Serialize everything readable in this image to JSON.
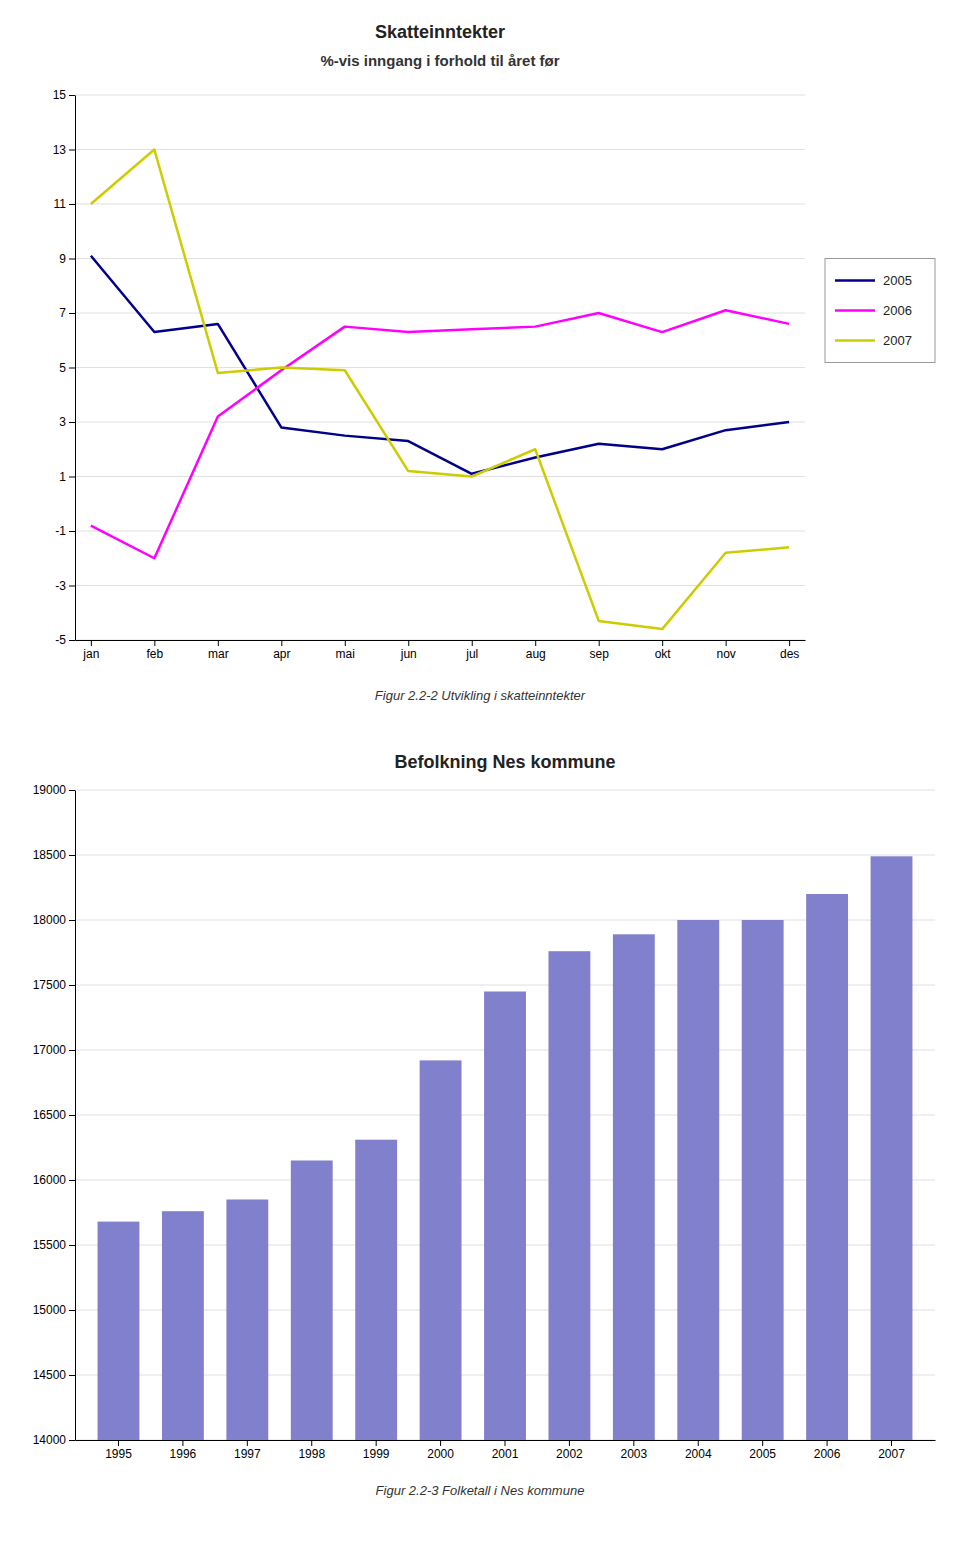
{
  "chart_data": [
    {
      "type": "line",
      "title": "Skatteinntekter",
      "subtitle": "%-vis inngang i forhold til året før",
      "caption": "Figur 2.2-2 Utvikling i skatteinntekter",
      "categories": [
        "jan",
        "feb",
        "mar",
        "apr",
        "mai",
        "jun",
        "jul",
        "aug",
        "sep",
        "okt",
        "nov",
        "des"
      ],
      "series": [
        {
          "name": "2005",
          "color": "#00008B",
          "values": [
            9.1,
            6.3,
            6.6,
            2.8,
            2.5,
            2.3,
            1.1,
            1.7,
            2.2,
            2.0,
            2.7,
            3.0
          ]
        },
        {
          "name": "2006",
          "color": "#FF00FF",
          "values": [
            -0.8,
            -2.0,
            3.2,
            4.9,
            6.5,
            6.3,
            6.4,
            6.5,
            7.0,
            6.3,
            7.1,
            6.6
          ]
        },
        {
          "name": "2007",
          "color": "#CCCC00",
          "values": [
            11.0,
            13.0,
            4.8,
            5.0,
            4.9,
            1.2,
            1.0,
            2.0,
            -4.3,
            -4.6,
            -1.8,
            -1.6
          ]
        }
      ],
      "ylim": [
        -5,
        15
      ],
      "yticks": [
        -5,
        -3,
        -1,
        1,
        3,
        5,
        7,
        9,
        11,
        13,
        15
      ],
      "grid": true,
      "legend": "right"
    },
    {
      "type": "bar",
      "title": "Befolkning Nes kommune",
      "caption": "Figur 2.2-3 Folketall i Nes kommune",
      "categories": [
        "1995",
        "1996",
        "1997",
        "1998",
        "1999",
        "2000",
        "2001",
        "2002",
        "2003",
        "2004",
        "2005",
        "2006",
        "2007"
      ],
      "values": [
        15680,
        15760,
        15850,
        16150,
        16310,
        16920,
        17450,
        17760,
        17890,
        18000,
        18000,
        18200,
        18490
      ],
      "color": "#8080CC",
      "ylim": [
        14000,
        19000
      ],
      "yticks": [
        14000,
        14500,
        15000,
        15500,
        16000,
        16500,
        17000,
        17500,
        18000,
        18500,
        19000
      ],
      "grid": true
    }
  ]
}
